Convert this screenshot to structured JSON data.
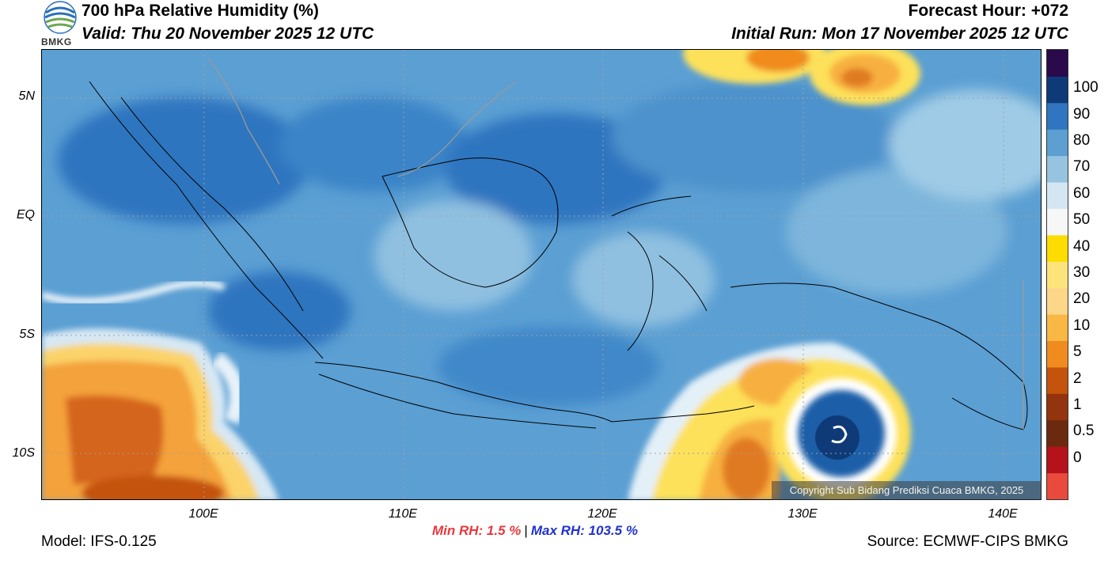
{
  "header": {
    "title": "700 hPa Relative Humidity (%)",
    "valid": "Valid: Thu 20 November 2025 12 UTC",
    "forecast_hour": "Forecast Hour: +072",
    "initial_run": "Initial Run: Mon 17 November 2025 12 UTC",
    "logo_text": "BMKG"
  },
  "axes": {
    "lat_ticks": [
      "5N",
      "EQ",
      "5S",
      "10S"
    ],
    "lon_ticks": [
      "100E",
      "110E",
      "120E",
      "130E",
      "140E"
    ]
  },
  "stats": {
    "min": "Min RH:   1.5 %",
    "separator": "|",
    "max": "Max RH: 103.5 %"
  },
  "footer": {
    "model": "Model: IFS-0.125",
    "source": "Source: ECMWF-CIPS BMKG",
    "copyright": "Copyright Sub Bidang Prediksi Cuaca BMKG, 2025"
  },
  "colorbar": {
    "labels": [
      "100",
      "90",
      "80",
      "70",
      "60",
      "50",
      "40",
      "30",
      "20",
      "10",
      "5",
      "2",
      "1",
      "0.5",
      "0"
    ],
    "colors": [
      "#ea4a3c",
      "#b5121b",
      "#6b2a10",
      "#93340e",
      "#c4530b",
      "#f08b1f",
      "#f9b743",
      "#fcd789",
      "#fde47a",
      "#fddd00",
      "#f7f7f7",
      "#d4e6f1",
      "#95c3e0",
      "#5c9fd0",
      "#2f75bf",
      "#0f3a78",
      "#2a0a4a"
    ]
  },
  "map": {
    "ocean_color": "#4f94cf",
    "deep_color": "#1f5fa8",
    "dry_color": "#f2a33a",
    "land_line_color": "#000000"
  }
}
